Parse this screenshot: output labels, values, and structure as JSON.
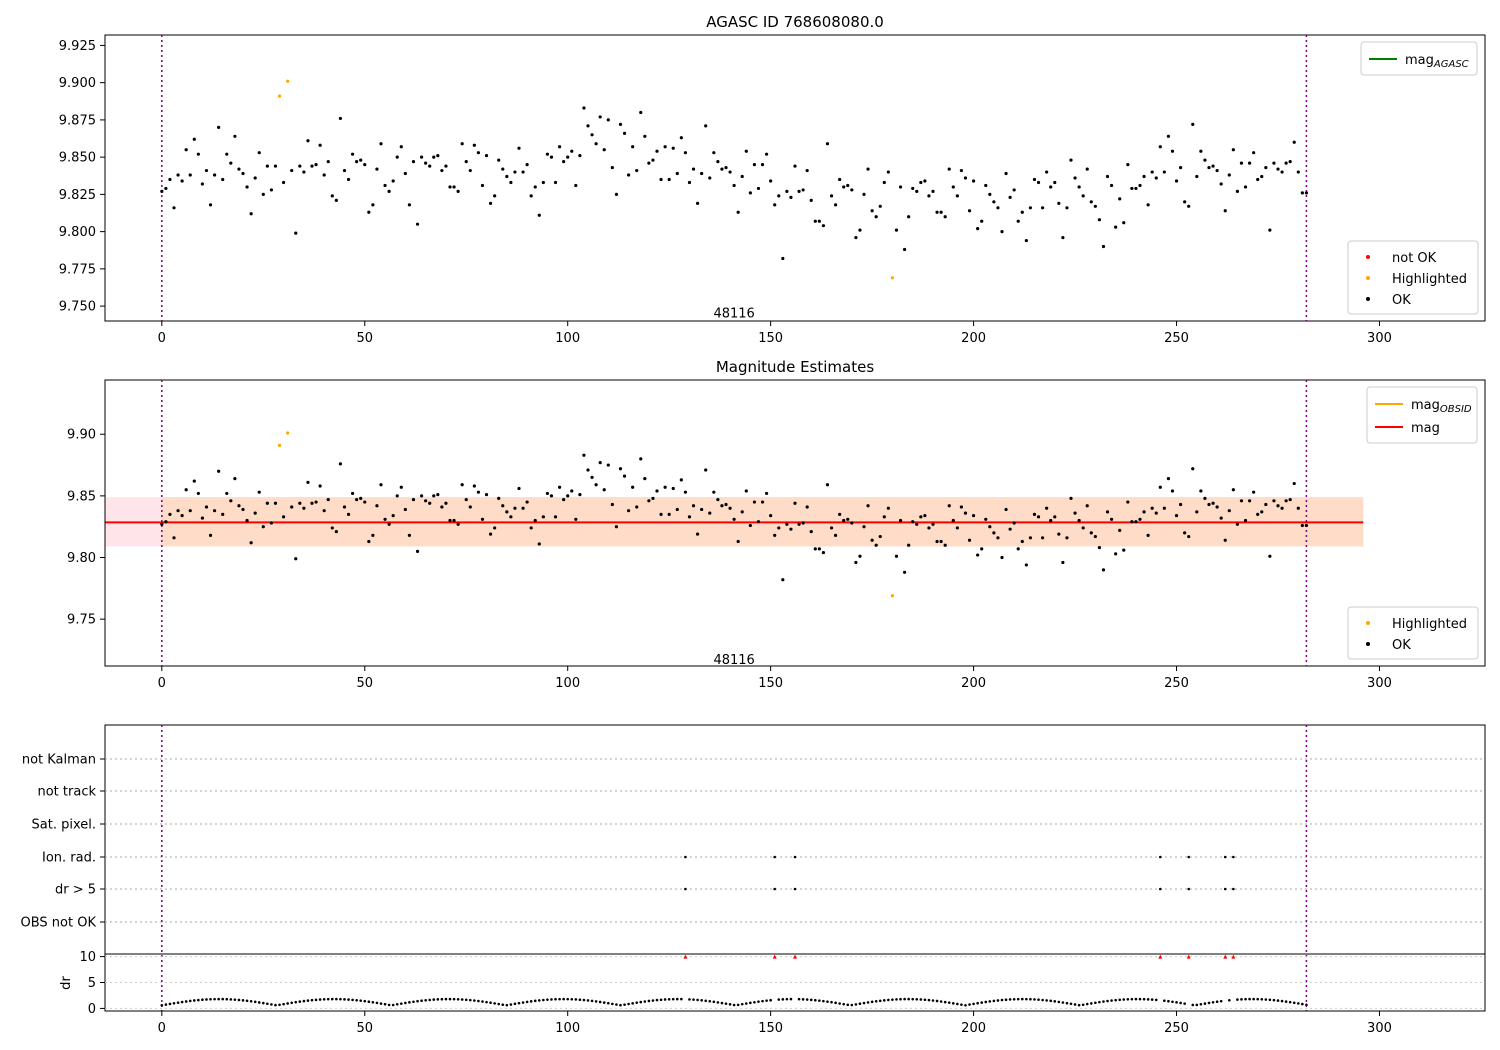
{
  "chart_data": [
    {
      "type": "scatter",
      "title": "AGASC ID 768608080.0",
      "xlim": [
        -14,
        326
      ],
      "ylim": [
        9.74,
        9.932
      ],
      "xticks": [
        0,
        50,
        100,
        150,
        200,
        250,
        300
      ],
      "yticks": [
        9.75,
        9.775,
        9.8,
        9.825,
        9.85,
        9.875,
        9.9,
        9.925
      ],
      "ytick_decimals": 3,
      "vlines": [
        0,
        282
      ],
      "annotation": {
        "text": "48116",
        "x": 141,
        "y": 9.745
      },
      "legend_lines": [
        {
          "label": "mag",
          "sub": "AGASC",
          "color": "#008000"
        }
      ],
      "legend_points": [
        {
          "label": "not OK",
          "color": "#ff0000"
        },
        {
          "label": "Highlighted",
          "color": "#ffa500"
        },
        {
          "label": "OK",
          "color": "#000000"
        }
      ]
    },
    {
      "type": "scatter",
      "title": "Magnitude Estimates",
      "xlim": [
        -14,
        326
      ],
      "ylim": [
        9.712,
        9.944
      ],
      "xticks": [
        0,
        50,
        100,
        150,
        200,
        250,
        300
      ],
      "yticks": [
        9.75,
        9.8,
        9.85,
        9.9
      ],
      "ytick_decimals": 2,
      "vlines": [
        0,
        282
      ],
      "annotation": {
        "text": "48116",
        "x": 141,
        "y": 9.717
      },
      "band_outer": {
        "x": [
          -14,
          296
        ],
        "y": [
          9.809,
          9.849
        ],
        "color": "#ffe4ea"
      },
      "band_inner": {
        "x": [
          0,
          296
        ],
        "y": [
          9.809,
          9.849
        ],
        "color": "#ffdcc8"
      },
      "mag_line": {
        "y": 9.8285,
        "x": [
          -14,
          296
        ]
      },
      "legend_lines": [
        {
          "label": "mag",
          "sub": "OBSID",
          "color": "#ffa500"
        },
        {
          "label": "mag",
          "sub": "",
          "color": "#ff0000"
        }
      ],
      "legend_points": [
        {
          "label": "Highlighted",
          "color": "#ffa500"
        },
        {
          "label": "OK",
          "color": "#000000"
        }
      ]
    },
    {
      "type": "scatter",
      "title": "",
      "xlim": [
        -14,
        326
      ],
      "xticks": [
        0,
        50,
        100,
        150,
        200,
        250,
        300
      ],
      "vlines": [
        0,
        282
      ],
      "flag_labels": [
        "not Kalman",
        "not track",
        "Sat. pixel.",
        "Ion. rad.",
        "dr > 5",
        "OBS not OK"
      ],
      "flag_points": {
        "Ion. rad.": [
          129,
          151,
          156,
          246,
          253,
          262,
          264
        ],
        "dr > 5": [
          129,
          151,
          156,
          246,
          253,
          262,
          264
        ]
      },
      "dr_ylim": [
        -0.5,
        10.5
      ],
      "dr_yticks": [
        0,
        5,
        10
      ],
      "dr_ylabel": "dr",
      "dr_red": [
        129,
        151,
        156,
        246,
        253,
        262,
        264
      ]
    }
  ],
  "colors": {
    "ok": "#000000",
    "highlight": "#ffa500",
    "not_ok": "#ff0000",
    "vline": "#800080",
    "mag": "#ff0000",
    "agasc": "#008000"
  },
  "mag_series": {
    "highlighted": [
      [
        29,
        9.891
      ],
      [
        31,
        9.901
      ],
      [
        180,
        9.769
      ]
    ]
  },
  "mag_seed_pattern": [
    9.838,
    9.826,
    9.841,
    9.808,
    9.839,
    9.844,
    9.851,
    9.843,
    9.853,
    9.852,
    9.841,
    9.836,
    9.822,
    9.828,
    9.869,
    9.843,
    9.846,
    9.849,
    9.853,
    9.84,
    9.846,
    9.823,
    9.814,
    9.847,
    9.85,
    9.831,
    9.836,
    9.829,
    9.854,
    9.847
  ]
}
